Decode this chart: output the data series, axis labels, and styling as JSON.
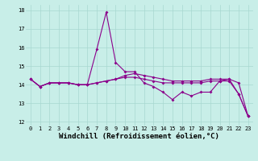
{
  "xlabel": "Windchill (Refroidissement éolien,°C)",
  "x": [
    0,
    1,
    2,
    3,
    4,
    5,
    6,
    7,
    8,
    9,
    10,
    11,
    12,
    13,
    14,
    15,
    16,
    17,
    18,
    19,
    20,
    21,
    22,
    23
  ],
  "series1": [
    14.3,
    13.9,
    14.1,
    14.1,
    14.1,
    14.0,
    14.0,
    15.9,
    17.9,
    15.2,
    14.7,
    14.7,
    14.1,
    13.9,
    13.6,
    13.2,
    13.6,
    13.4,
    13.6,
    13.6,
    14.2,
    14.3,
    13.5,
    12.3
  ],
  "series2": [
    14.3,
    13.9,
    14.1,
    14.1,
    14.1,
    14.0,
    14.0,
    14.1,
    14.2,
    14.3,
    14.5,
    14.6,
    14.5,
    14.4,
    14.3,
    14.2,
    14.2,
    14.2,
    14.2,
    14.3,
    14.3,
    14.3,
    14.1,
    12.3
  ],
  "series3": [
    14.3,
    13.9,
    14.1,
    14.1,
    14.1,
    14.0,
    14.0,
    14.1,
    14.2,
    14.3,
    14.4,
    14.4,
    14.3,
    14.2,
    14.1,
    14.1,
    14.1,
    14.1,
    14.1,
    14.2,
    14.2,
    14.2,
    13.5,
    12.3
  ],
  "line_color": "#8B008B",
  "bg_color": "#C8EEE8",
  "grid_color": "#A8D8D0",
  "ylim": [
    11.8,
    18.3
  ],
  "yticks": [
    12,
    13,
    14,
    15,
    16,
    17,
    18
  ],
  "xlim": [
    -0.5,
    23.5
  ],
  "xticks": [
    0,
    1,
    2,
    3,
    4,
    5,
    6,
    7,
    8,
    9,
    10,
    11,
    12,
    13,
    14,
    15,
    16,
    17,
    18,
    19,
    20,
    21,
    22,
    23
  ],
  "tick_fontsize": 5.0,
  "label_fontsize": 6.5
}
